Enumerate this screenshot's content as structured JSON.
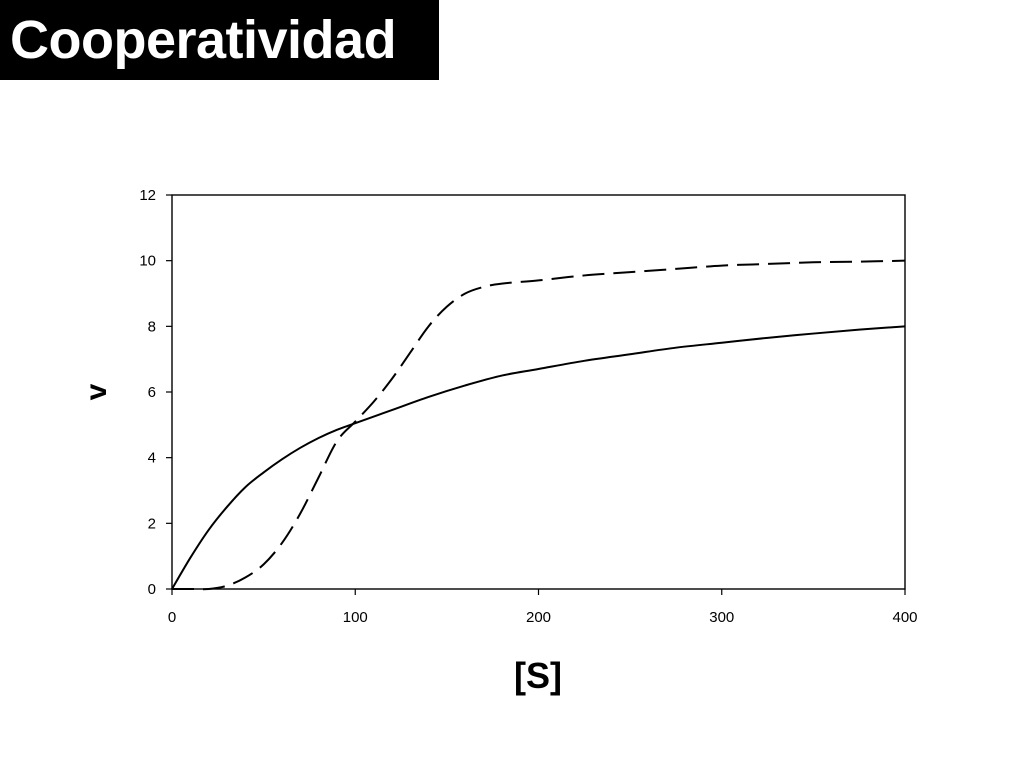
{
  "slide": {
    "title": "Cooperatividad"
  },
  "chart_data": {
    "type": "line",
    "title": "",
    "xlabel": "[S]",
    "ylabel": "v",
    "xlim": [
      0,
      400
    ],
    "ylim": [
      0,
      12
    ],
    "x_ticks": [
      0,
      100,
      200,
      300,
      400
    ],
    "y_ticks": [
      0,
      2,
      4,
      6,
      8,
      10,
      12
    ],
    "grid": false,
    "legend": "none",
    "series": [
      {
        "style": "solid",
        "color": "#000000",
        "x": [
          0,
          10,
          20,
          30,
          40,
          50,
          60,
          70,
          80,
          90,
          100,
          120,
          140,
          160,
          180,
          200,
          225,
          250,
          275,
          300,
          325,
          350,
          375,
          400
        ],
        "y": [
          0,
          0.95,
          1.8,
          2.5,
          3.1,
          3.55,
          3.95,
          4.3,
          4.6,
          4.85,
          5.05,
          5.45,
          5.85,
          6.2,
          6.5,
          6.7,
          6.95,
          7.15,
          7.35,
          7.5,
          7.65,
          7.78,
          7.9,
          8.0
        ]
      },
      {
        "style": "dashed",
        "color": "#000000",
        "x": [
          0,
          10,
          20,
          30,
          40,
          50,
          60,
          70,
          80,
          90,
          100,
          110,
          120,
          130,
          140,
          150,
          160,
          170,
          180,
          200,
          225,
          250,
          275,
          300,
          325,
          350,
          375,
          400
        ],
        "y": [
          0,
          0,
          0,
          0.1,
          0.35,
          0.75,
          1.4,
          2.3,
          3.4,
          4.5,
          5.1,
          5.7,
          6.4,
          7.2,
          8.0,
          8.6,
          9.0,
          9.2,
          9.3,
          9.4,
          9.55,
          9.65,
          9.75,
          9.85,
          9.9,
          9.95,
          9.97,
          10.0
        ]
      }
    ]
  }
}
